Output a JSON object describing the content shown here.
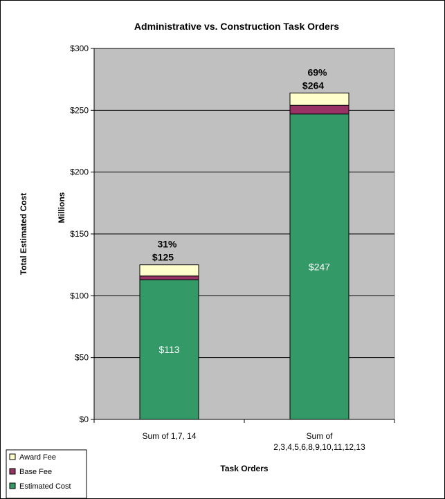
{
  "chart_data": {
    "type": "bar",
    "stacked": true,
    "title": "Administrative vs. Construction Task Orders",
    "xlabel": "Task Orders",
    "ylabel": "Total Estimated Cost",
    "ylabel_units": "Millions",
    "ylim": [
      0,
      300
    ],
    "yticks": [
      "$0",
      "$50",
      "$100",
      "$150",
      "$200",
      "$250",
      "$300"
    ],
    "ytick_values": [
      0,
      50,
      100,
      150,
      200,
      250,
      300
    ],
    "categories": [
      {
        "lines": [
          "Sum of 1,7, 14"
        ]
      },
      {
        "lines": [
          "Sum of",
          "2,3,4,5,6,8,9,10,11,12,13"
        ]
      }
    ],
    "series": [
      {
        "name": "Estimated Cost",
        "color": "#339966",
        "values": [
          113,
          247
        ],
        "labels": [
          "$113",
          "$247"
        ]
      },
      {
        "name": "Base Fee",
        "color": "#993366",
        "values": [
          3,
          7
        ]
      },
      {
        "name": "Award Fee",
        "color": "#ffffcc",
        "values": [
          9,
          10
        ]
      }
    ],
    "totals": [
      "$125",
      "$264"
    ],
    "percentages": [
      "31%",
      "69%"
    ],
    "legend_order": [
      "Award Fee",
      "Base Fee",
      "Estimated Cost"
    ],
    "legend_placement": "bottom-left",
    "plot_background": "#c0c0c0",
    "grid": true
  }
}
